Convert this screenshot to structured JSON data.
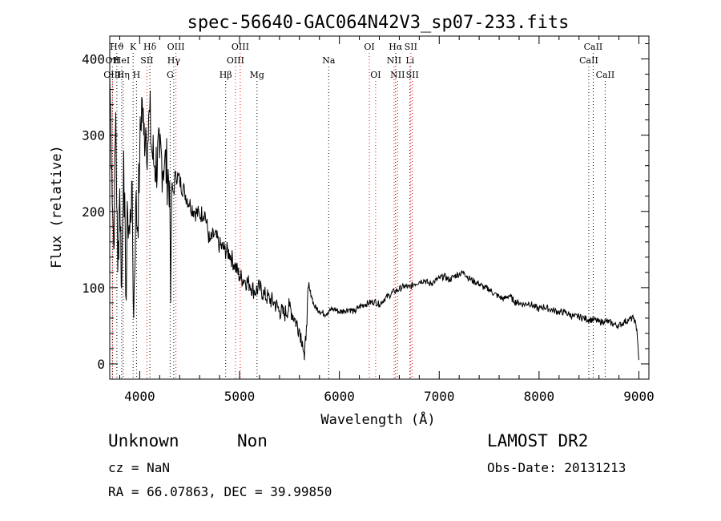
{
  "footer": {
    "object_class": "Unknown",
    "subclass": "Non",
    "survey": "LAMOST DR2",
    "redshift": "cz = NaN",
    "obs_date": "Obs-Date: 20131213",
    "coordinates": "RA =  66.07863, DEC =  39.99850"
  },
  "chart_data": {
    "type": "line",
    "title": "spec-56640-GAC064N42V3_sp07-233.fits",
    "xlabel": "Wavelength (Å)",
    "ylabel": "Flux (relative)",
    "xlim": [
      3700,
      9100
    ],
    "ylim": [
      -20,
      430
    ],
    "xticks": [
      4000,
      5000,
      6000,
      7000,
      8000,
      9000
    ],
    "yticks": [
      0,
      100,
      200,
      300,
      400
    ],
    "grid": false,
    "series": [
      {
        "color": "#000000",
        "x": [
          3700,
          3720,
          3740,
          3760,
          3780,
          3800,
          3820,
          3840,
          3860,
          3880,
          3900,
          3920,
          3940,
          3960,
          3980,
          4000,
          4020,
          4040,
          4060,
          4080,
          4100,
          4120,
          4150,
          4200,
          4250,
          4300,
          4310,
          4320,
          4340,
          4360,
          4400,
          4450,
          4500,
          4550,
          4600,
          4650,
          4700,
          4750,
          4800,
          4850,
          4900,
          4950,
          5000,
          5050,
          5100,
          5150,
          5200,
          5250,
          5300,
          5350,
          5400,
          5450,
          5500,
          5550,
          5600,
          5630,
          5650,
          5670,
          5690,
          5720,
          5750,
          5800,
          5850,
          5900,
          5950,
          6000,
          6050,
          6100,
          6150,
          6200,
          6250,
          6300,
          6350,
          6400,
          6450,
          6500,
          6550,
          6600,
          6650,
          6700,
          6750,
          6800,
          6850,
          6900,
          6950,
          7000,
          7050,
          7100,
          7150,
          7200,
          7250,
          7300,
          7350,
          7400,
          7450,
          7500,
          7550,
          7600,
          7650,
          7700,
          7750,
          7800,
          7850,
          7900,
          7950,
          8000,
          8050,
          8100,
          8150,
          8200,
          8250,
          8300,
          8350,
          8400,
          8450,
          8500,
          8550,
          8600,
          8650,
          8700,
          8750,
          8800,
          8850,
          8900,
          8950,
          8980,
          9000
        ],
        "y": [
          380,
          260,
          150,
          330,
          120,
          230,
          100,
          280,
          90,
          200,
          170,
          240,
          60,
          210,
          180,
          270,
          350,
          300,
          310,
          290,
          330,
          280,
          260,
          270,
          265,
          240,
          80,
          230,
          225,
          250,
          240,
          225,
          210,
          200,
          195,
          200,
          160,
          170,
          155,
          150,
          145,
          130,
          115,
          110,
          105,
          95,
          100,
          90,
          85,
          80,
          70,
          65,
          75,
          60,
          45,
          30,
          5,
          50,
          100,
          90,
          75,
          70,
          65,
          70,
          72,
          68,
          70,
          72,
          68,
          75,
          78,
          80,
          82,
          78,
          85,
          90,
          95,
          98,
          102,
          100,
          105,
          108,
          110,
          105,
          108,
          112,
          115,
          110,
          115,
          118,
          120,
          112,
          108,
          105,
          100,
          98,
          92,
          88,
          85,
          90,
          82,
          80,
          78,
          80,
          75,
          72,
          75,
          72,
          70,
          68,
          68,
          65,
          62,
          62,
          60,
          58,
          58,
          55,
          56,
          55,
          52,
          50,
          55,
          58,
          60,
          45,
          5
        ]
      }
    ],
    "line_markers": [
      {
        "label": "Hϑ",
        "x": 3771,
        "row": 1,
        "color": "#000000"
      },
      {
        "label": "OII",
        "x": 3727,
        "row": 2,
        "color": "#000000"
      },
      {
        "label": "OIII",
        "x": 3726,
        "row": 3,
        "color": "#ff0000"
      },
      {
        "label": "Hη",
        "x": 3835,
        "row": 3,
        "color": "#000000"
      },
      {
        "label": "HeI",
        "x": 3820,
        "row": 2,
        "color": "#000000"
      },
      {
        "label": "K",
        "x": 3934,
        "row": 1,
        "color": "#000000"
      },
      {
        "label": "SII",
        "x": 4072,
        "row": 2,
        "color": "#ff0000"
      },
      {
        "label": "H",
        "x": 3968,
        "row": 3,
        "color": "#000000"
      },
      {
        "label": "Hδ",
        "x": 4102,
        "row": 1,
        "color": "#000000"
      },
      {
        "label": "OIII",
        "x": 4363,
        "row": 1,
        "color": "#ff0000"
      },
      {
        "label": "Hγ",
        "x": 4341,
        "row": 2,
        "color": "#000000"
      },
      {
        "label": "G",
        "x": 4305,
        "row": 3,
        "color": "#000000"
      },
      {
        "label": "Hβ",
        "x": 4861,
        "row": 3,
        "color": "#000000"
      },
      {
        "label": "OIII",
        "x": 4959,
        "row": 2,
        "color": "#ff0000"
      },
      {
        "label": "OIII",
        "x": 5007,
        "row": 1,
        "color": "#ff0000"
      },
      {
        "label": "Mg",
        "x": 5175,
        "row": 3,
        "color": "#000000"
      },
      {
        "label": "Na",
        "x": 5893,
        "row": 2,
        "color": "#000000"
      },
      {
        "label": "OI",
        "x": 6300,
        "row": 1,
        "color": "#ff0000"
      },
      {
        "label": "OI",
        "x": 6363,
        "row": 3,
        "color": "#ff0000"
      },
      {
        "label": "Hα",
        "x": 6563,
        "row": 1,
        "color": "#000000"
      },
      {
        "label": "NII",
        "x": 6548,
        "row": 2,
        "color": "#ff0000"
      },
      {
        "label": "NII",
        "x": 6583,
        "row": 3,
        "color": "#ff0000"
      },
      {
        "label": "SII",
        "x": 6716,
        "row": 1,
        "color": "#ff0000"
      },
      {
        "label": "Li",
        "x": 6707,
        "row": 2,
        "color": "#000000"
      },
      {
        "label": "SII",
        "x": 6731,
        "row": 3,
        "color": "#ff0000"
      },
      {
        "label": "CaII",
        "x": 8542,
        "row": 1,
        "color": "#000000"
      },
      {
        "label": "CaII",
        "x": 8498,
        "row": 2,
        "color": "#000000"
      },
      {
        "label": "CaII",
        "x": 8662,
        "row": 3,
        "color": "#000000"
      }
    ]
  }
}
